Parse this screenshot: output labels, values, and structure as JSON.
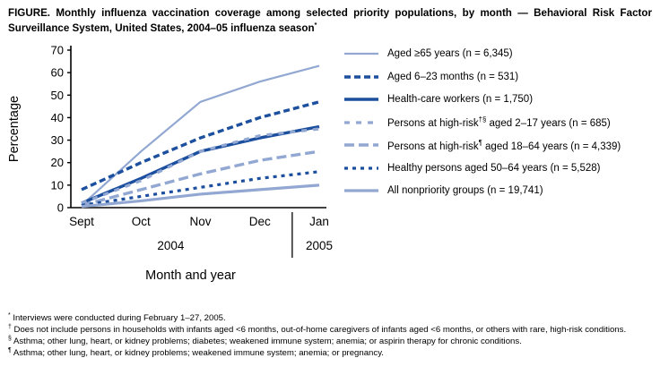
{
  "figure": {
    "title": "FIGURE. Monthly influenza vaccination coverage among selected priority populations, by month — Behavioral Risk Factor Surveillance System, United States, 2004–05 influenza season",
    "title_sup": "*"
  },
  "colors": {
    "dark_blue": "#1c4f9e",
    "light_blue": "#92a8d2",
    "axis": "#000000"
  },
  "chart_data": {
    "type": "line",
    "title": "Monthly influenza vaccination coverage among selected priority populations, 2004-05 season",
    "x_categories": [
      "Sept",
      "Oct",
      "Nov",
      "Dec",
      "Jan"
    ],
    "year_labels": [
      "2004",
      "2005"
    ],
    "xlabel": "Month and year",
    "ylabel": "Percentage",
    "ylim": [
      0,
      70
    ],
    "ytick_step": 10,
    "grid": false,
    "legend_position": "right",
    "series": [
      {
        "name": "Aged ≥65 years (n = 6,345)",
        "label_pre": "Aged ≥65 years (n = 6,345)",
        "label_sup": "",
        "label_post": "",
        "values": [
          1,
          25,
          47,
          56,
          63
        ],
        "color": "light_blue",
        "width": 2.2,
        "dash": ""
      },
      {
        "name": "Aged 6–23 months (n = 531)",
        "label_pre": "Aged 6–23 months (n = 531)",
        "label_sup": "",
        "label_post": "",
        "values": [
          8,
          20,
          31,
          40,
          47
        ],
        "color": "dark_blue",
        "width": 3.4,
        "dash": "7 4"
      },
      {
        "name": "Health-care workers (n = 1,750)",
        "label_pre": "Health-care workers (n = 1,750)",
        "label_sup": "",
        "label_post": "",
        "values": [
          2,
          13,
          25,
          31,
          36
        ],
        "color": "dark_blue",
        "width": 3.4,
        "dash": ""
      },
      {
        "name": "Persons at high-risk aged 2–17 years (n = 685)",
        "label_pre": "Persons at high-risk",
        "label_sup": "†§",
        "label_post": " aged 2–17 years  (n = 685)",
        "values": [
          2,
          12,
          25,
          32,
          35
        ],
        "color": "light_blue",
        "width": 3.2,
        "dash": "6 7"
      },
      {
        "name": "Persons at high-risk aged 18–64 years (n = 4,339)",
        "label_pre": "Persons at high-risk",
        "label_sup": "¶",
        "label_post": " aged 18–64 years (n = 4,339)",
        "values": [
          1,
          8,
          15,
          21,
          25
        ],
        "color": "light_blue",
        "width": 3.4,
        "dash": "11 5"
      },
      {
        "name": "Healthy persons aged 50–64 years (n = 5,528)",
        "label_pre": "Healthy persons aged 50–64 years (n = 5,528)",
        "label_sup": "",
        "label_post": "",
        "values": [
          1,
          5,
          9,
          13,
          16
        ],
        "color": "dark_blue",
        "width": 3.2,
        "dash": "4 5"
      },
      {
        "name": "All nonpriority groups (n = 19,741)",
        "label_pre": "All nonpriority groups (n = 19,741)",
        "label_sup": "",
        "label_post": "",
        "values": [
          0.5,
          3,
          6,
          8,
          10
        ],
        "color": "light_blue",
        "width": 3.2,
        "dash": ""
      }
    ]
  },
  "footnotes": [
    {
      "marker": "*",
      "text": "Interviews were conducted during February 1–27, 2005."
    },
    {
      "marker": "†",
      "text": "Does not include persons in households with infants aged <6 months, out-of-home caregivers of infants aged <6 months, or others with rare, high-risk conditions."
    },
    {
      "marker": "§",
      "text": "Asthma; other lung, heart, or kidney problems; diabetes; weakened immune system; anemia; or aspirin therapy for chronic conditions."
    },
    {
      "marker": "¶",
      "text": "Asthma; other lung, heart, or kidney problems; weakened immune system; anemia; or pregnancy."
    }
  ]
}
